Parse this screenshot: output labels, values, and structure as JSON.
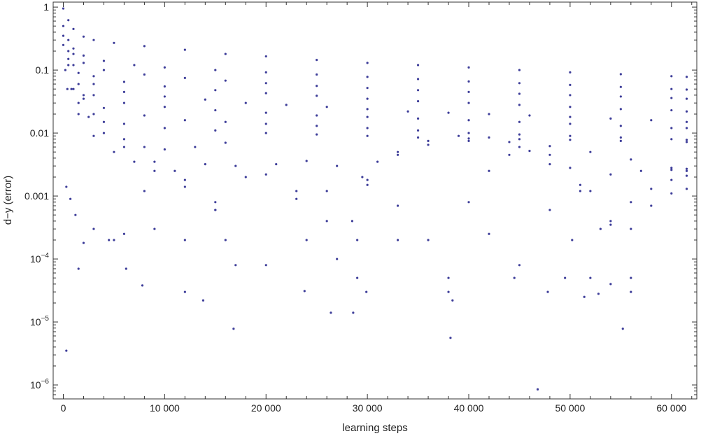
{
  "chart_data": {
    "type": "scatter",
    "title": "",
    "xlabel": "learning steps",
    "ylabel": "d−y (error)",
    "xlim": [
      -1000,
      62500
    ],
    "ylim": [
      6e-07,
      1.2
    ],
    "yscale": "log",
    "grid": false,
    "legend": "none",
    "x_ticks": [
      {
        "value": 0,
        "label": "0"
      },
      {
        "value": 10000,
        "label": "10 000"
      },
      {
        "value": 20000,
        "label": "20 000"
      },
      {
        "value": 30000,
        "label": "30 000"
      },
      {
        "value": 40000,
        "label": "40 000"
      },
      {
        "value": 50000,
        "label": "50 000"
      },
      {
        "value": 60000,
        "label": "60 000"
      }
    ],
    "y_ticks": [
      {
        "value": 1,
        "label": "1"
      },
      {
        "value": 0.1,
        "label": "0.1"
      },
      {
        "value": 0.01,
        "label": "0.01"
      },
      {
        "value": 0.001,
        "label": "0.001"
      },
      {
        "value": 0.0001,
        "base": "10",
        "exp": "−4"
      },
      {
        "value": 1e-05,
        "base": "10",
        "exp": "−5"
      },
      {
        "value": 1e-06,
        "base": "10",
        "exp": "−6"
      }
    ],
    "series": [
      {
        "color": "#3d3d99",
        "x": [
          0,
          500,
          1000,
          2000,
          3000,
          5000,
          8000,
          12000,
          16000,
          20000,
          25000,
          30000,
          35000,
          40000,
          45000,
          50000,
          55000,
          60000,
          61500,
          0,
          500,
          1000,
          2000,
          4000,
          7000,
          10000,
          15000,
          20000,
          25000,
          30000,
          35000,
          40000,
          45000,
          50000,
          55000,
          60000,
          61500,
          0,
          1000,
          2000,
          4000,
          8000,
          12000,
          16000,
          20000,
          25000,
          30000,
          35000,
          40000,
          45000,
          50000,
          55000,
          60000,
          61500,
          0,
          1000,
          3000,
          6000,
          10000,
          15000,
          20000,
          25000,
          30000,
          35000,
          40000,
          45000,
          50000,
          55000,
          60000,
          61500,
          500,
          1500,
          3000,
          6000,
          10000,
          14000,
          18000,
          22000,
          26000,
          30000,
          34000,
          38000,
          42000,
          46000,
          50000,
          54000,
          58000,
          61500,
          500,
          1500,
          3000,
          6000,
          10000,
          15000,
          20000,
          25000,
          30000,
          35000,
          40000,
          45000,
          50000,
          55000,
          60000,
          61500,
          500,
          2000,
          4000,
          8000,
          12000,
          16000,
          20000,
          25000,
          30000,
          35000,
          40000,
          45000,
          50000,
          55000,
          60000,
          61500,
          1000,
          3000,
          6000,
          10000,
          15000,
          20000,
          25000,
          30000,
          35000,
          40000,
          45000,
          50000,
          55000,
          61500,
          200,
          800,
          1500,
          2500,
          4000,
          6000,
          9000,
          12000,
          15000,
          17000,
          5000,
          8000,
          11000,
          14000,
          17000,
          20000,
          23000,
          26000,
          29000,
          12000,
          15000,
          18000,
          21000,
          24000,
          27000,
          30000,
          33000,
          36000,
          38000,
          20000,
          23000,
          26000,
          29000,
          27000,
          30000,
          33000,
          36000,
          39000,
          42000,
          45000,
          48000,
          51000,
          53000,
          38000,
          40000,
          42000,
          44000,
          46000,
          48000,
          50000,
          52000,
          54000,
          56000,
          45000,
          48000,
          51000,
          54000,
          57000,
          60000,
          61500,
          52000,
          54000,
          56000,
          58000,
          60000,
          61500,
          54000,
          56000,
          58000,
          60000,
          61500,
          400,
          1500,
          3000,
          5000,
          7000,
          9000,
          12000,
          15000,
          2000,
          4000,
          6000,
          8000,
          10000,
          13000,
          16000,
          28500,
          29500,
          31000,
          33000,
          36000,
          40000,
          44000,
          48000,
          52000,
          56000,
          60000,
          61500,
          300,
          1500,
          6200,
          7800,
          13800,
          16800,
          23800,
          26400,
          28600,
          29900,
          38200,
          38400,
          46800,
          47800,
          51400,
          52800,
          55200,
          56000,
          300,
          700,
          1200,
          2000,
          3000,
          4500,
          6000,
          9000,
          12000,
          16000,
          24000,
          33000,
          42000,
          44500,
          49500,
          50200
        ],
        "y": [
          0.95,
          0.62,
          0.45,
          0.34,
          0.3,
          0.27,
          0.24,
          0.21,
          0.18,
          0.165,
          0.145,
          0.13,
          0.12,
          0.11,
          0.1,
          0.092,
          0.086,
          0.08,
          0.078,
          0.5,
          0.3,
          0.22,
          0.17,
          0.14,
          0.12,
          0.11,
          0.1,
          0.092,
          0.085,
          0.078,
          0.072,
          0.066,
          0.062,
          0.058,
          0.054,
          0.05,
          0.049,
          0.35,
          0.18,
          0.13,
          0.1,
          0.085,
          0.075,
          0.068,
          0.062,
          0.056,
          0.052,
          0.048,
          0.045,
          0.042,
          0.04,
          0.038,
          0.036,
          0.035,
          0.25,
          0.12,
          0.08,
          0.065,
          0.055,
          0.048,
          0.043,
          0.039,
          0.035,
          0.032,
          0.03,
          0.028,
          0.026,
          0.024,
          0.023,
          0.022,
          0.2,
          0.09,
          0.06,
          0.045,
          0.038,
          0.034,
          0.03,
          0.028,
          0.026,
          0.024,
          0.022,
          0.021,
          0.02,
          0.019,
          0.018,
          0.017,
          0.016,
          0.015,
          0.15,
          0.06,
          0.04,
          0.03,
          0.026,
          0.023,
          0.021,
          0.019,
          0.018,
          0.017,
          0.016,
          0.015,
          0.014,
          0.013,
          0.012,
          0.012,
          0.12,
          0.035,
          0.025,
          0.019,
          0.016,
          0.015,
          0.014,
          0.013,
          0.012,
          0.011,
          0.01,
          0.0095,
          0.009,
          0.0085,
          0.008,
          0.0078,
          0.05,
          0.02,
          0.014,
          0.012,
          0.011,
          0.01,
          0.0095,
          0.009,
          0.0085,
          0.0082,
          0.008,
          0.0078,
          0.0075,
          0.0072,
          0.1,
          0.05,
          0.03,
          0.018,
          0.01,
          0.006,
          0.0035,
          0.0018,
          0.0006,
          8e-05,
          0.0002,
          0.0012,
          0.0025,
          0.0032,
          0.003,
          0.0022,
          0.0012,
          0.0004,
          5e-05,
          3e-05,
          0.0008,
          0.002,
          0.0032,
          0.0036,
          0.003,
          0.0018,
          0.0007,
          0.0002,
          3e-05,
          8e-05,
          0.0009,
          0.0012,
          0.0002,
          0.0001,
          0.0015,
          0.0045,
          0.0075,
          0.009,
          0.0085,
          0.006,
          0.0032,
          0.0012,
          0.0003,
          5e-05,
          0.0008,
          0.0025,
          0.0045,
          0.0052,
          0.0045,
          0.0028,
          0.0012,
          0.0004,
          5e-05,
          8e-05,
          0.0006,
          0.0015,
          0.0022,
          0.0025,
          0.0026,
          0.0027,
          5e-05,
          0.00035,
          0.0008,
          0.0013,
          0.0018,
          0.0021,
          4e-05,
          0.0003,
          0.0007,
          0.0011,
          0.0013,
          0.05,
          0.02,
          0.009,
          0.005,
          0.0035,
          0.0025,
          0.0014,
          0.0006,
          0.04,
          0.015,
          0.008,
          0.006,
          0.0055,
          0.006,
          0.007,
          0.0004,
          0.002,
          0.0035,
          0.005,
          0.0065,
          0.0075,
          0.0072,
          0.0062,
          0.005,
          0.0038,
          0.0028,
          0.0025,
          3.5e-06,
          7e-05,
          7e-05,
          3.8e-05,
          2.2e-05,
          7.8e-06,
          3.1e-05,
          1.4e-05,
          1.4e-05,
          3e-05,
          5.6e-06,
          2.2e-05,
          8.5e-07,
          3e-05,
          2.5e-05,
          2.8e-05,
          7.8e-06,
          3e-05,
          0.0014,
          0.0009,
          0.0005,
          0.00018,
          0.0003,
          0.0002,
          0.00025,
          0.0003,
          0.0002,
          0.0002,
          0.0002,
          0.0002,
          0.00025,
          5e-05,
          5e-05,
          0.0002
        ]
      }
    ]
  }
}
